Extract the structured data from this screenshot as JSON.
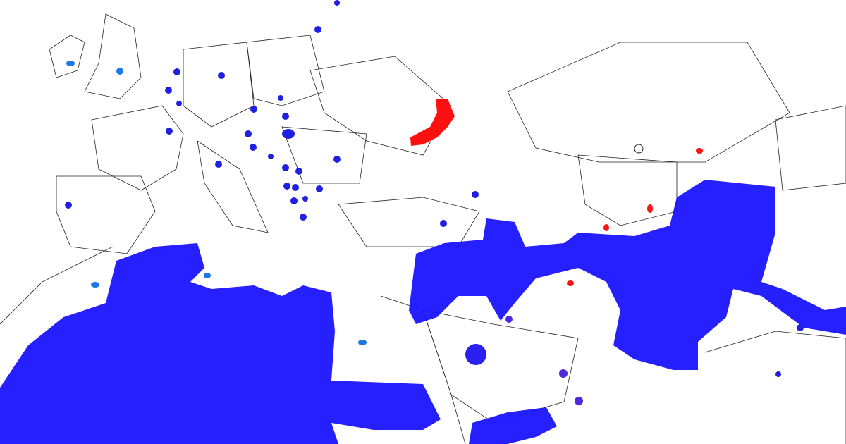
{
  "map": {
    "colors": {
      "range_fill": "#1a14ff",
      "point_dark_blue": "#2020e0",
      "point_light_blue": "#1e78e0",
      "point_purple": "#5028e0",
      "point_red": "#ff1010",
      "border": "#222222",
      "background": "#ffffff"
    },
    "marker_types": [
      "range-area",
      "blue-occurrence",
      "light-blue-occurrence",
      "purple-occurrence",
      "red-occurrence",
      "hollow-occurrence"
    ]
  }
}
